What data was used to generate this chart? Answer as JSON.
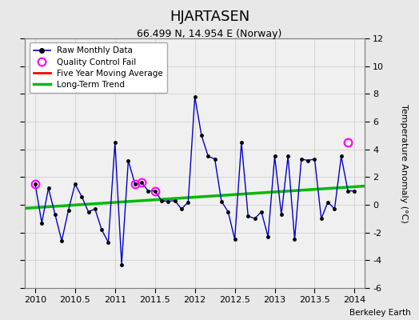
{
  "title": "HJARTASEN",
  "subtitle": "66.499 N, 14.954 E (Norway)",
  "ylabel": "Temperature Anomaly (°C)",
  "credit": "Berkeley Earth",
  "xlim": [
    2009.875,
    2014.125
  ],
  "ylim": [
    -6,
    12
  ],
  "yticks": [
    -6,
    -4,
    -2,
    0,
    2,
    4,
    6,
    8,
    10,
    12
  ],
  "xticks": [
    2010,
    2010.5,
    2011,
    2011.5,
    2012,
    2012.5,
    2013,
    2013.5,
    2014
  ],
  "xtick_labels": [
    "2010",
    "2010.5",
    "2011",
    "2011.5",
    "2012",
    "2012.5",
    "2013",
    "2013.5",
    "2014"
  ],
  "fig_facecolor": "#e8e8e8",
  "plot_facecolor": "#f0f0f0",
  "raw_data_x": [
    2010.0,
    2010.0833,
    2010.1667,
    2010.25,
    2010.3333,
    2010.4167,
    2010.5,
    2010.5833,
    2010.6667,
    2010.75,
    2010.8333,
    2010.9167,
    2011.0,
    2011.0833,
    2011.1667,
    2011.25,
    2011.3333,
    2011.4167,
    2011.5,
    2011.5833,
    2011.6667,
    2011.75,
    2011.8333,
    2011.9167,
    2012.0,
    2012.0833,
    2012.1667,
    2012.25,
    2012.3333,
    2012.4167,
    2012.5,
    2012.5833,
    2012.6667,
    2012.75,
    2012.8333,
    2012.9167,
    2013.0,
    2013.0833,
    2013.1667,
    2013.25,
    2013.3333,
    2013.4167,
    2013.5,
    2013.5833,
    2013.6667,
    2013.75,
    2013.8333,
    2013.9167,
    2014.0
  ],
  "raw_data_y": [
    1.5,
    -1.3,
    1.2,
    -0.7,
    -2.6,
    -0.4,
    1.5,
    0.6,
    -0.5,
    -0.3,
    -1.8,
    -2.7,
    4.5,
    -4.3,
    3.2,
    1.5,
    1.6,
    1.0,
    1.0,
    0.3,
    0.25,
    0.3,
    -0.3,
    0.2,
    7.8,
    5.0,
    3.5,
    3.3,
    0.25,
    -0.5,
    -2.5,
    4.5,
    -0.8,
    -1.0,
    -0.5,
    -2.3,
    3.5,
    -0.7,
    3.5,
    -2.5,
    3.3,
    3.2,
    3.3,
    -1.0,
    0.2,
    -0.3,
    3.5,
    1.0,
    1.0
  ],
  "qc_fail_x": [
    2010.0,
    2011.25,
    2011.3333,
    2011.5,
    2013.9167
  ],
  "qc_fail_y": [
    1.5,
    1.5,
    1.6,
    1.0,
    4.5
  ],
  "trend_x": [
    2009.875,
    2014.125
  ],
  "trend_y": [
    -0.25,
    1.35
  ],
  "raw_line_color": "#0000cc",
  "dot_color": "#000000",
  "qc_color": "#ff00ff",
  "trend_color": "#00bb00",
  "ma_color": "#ff0000",
  "grid_color": "#d0d0d0",
  "spine_color": "#808080"
}
